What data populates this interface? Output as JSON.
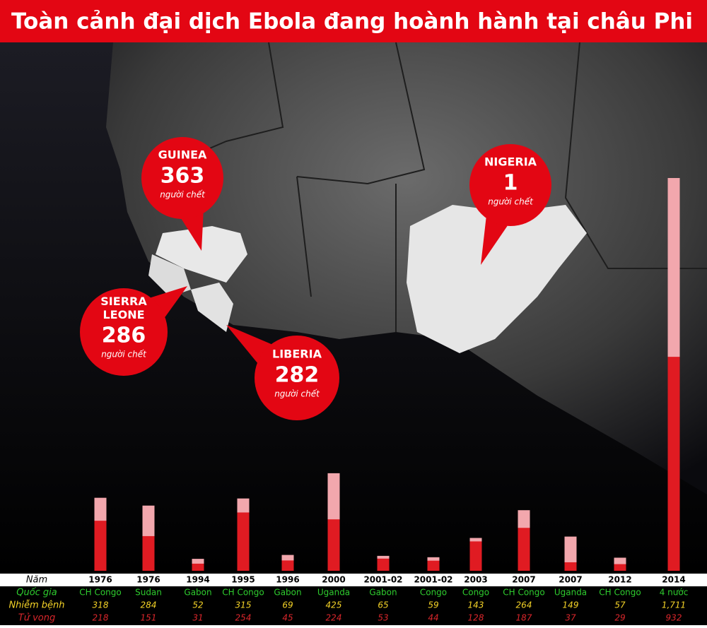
{
  "title": "Toàn cảnh đại dịch Ebola đang hoành hành tại châu Phi",
  "callouts": [
    {
      "name": "GUINEA",
      "value": "363",
      "unit": "người chết"
    },
    {
      "name": "SIERRA LEONE",
      "value": "286",
      "unit": "người chết"
    },
    {
      "name": "LIBERIA",
      "value": "282",
      "unit": "người chết"
    },
    {
      "name": "NIGERIA",
      "value": "1",
      "unit": "người chết"
    }
  ],
  "chart_data": {
    "type": "bar",
    "category_label": "Năm",
    "categories": [
      "1976",
      "1976",
      "1994",
      "1995",
      "1996",
      "2000",
      "2001-02",
      "2001-02",
      "2003",
      "2007",
      "2007",
      "2012",
      "2014"
    ],
    "countries": {
      "label": "Quốc gia",
      "values": [
        "CH Congo",
        "Sudan",
        "Gabon",
        "CH Congo",
        "Gabon",
        "Uganda",
        "Gabon",
        "Congo",
        "Congo",
        "CH Congo",
        "Uganda",
        "CH Congo",
        "4 nước"
      ]
    },
    "series": [
      {
        "name": "Nhiễm bệnh",
        "color": "#f2a7ad",
        "values": [
          318,
          284,
          52,
          315,
          69,
          425,
          65,
          59,
          143,
          264,
          149,
          57,
          1711
        ],
        "value_labels": [
          "318",
          "284",
          "52",
          "315",
          "69",
          "425",
          "65",
          "59",
          "143",
          "264",
          "149",
          "57",
          "1,711"
        ]
      },
      {
        "name": "Tử vong",
        "color": "#e01b22",
        "values": [
          218,
          151,
          31,
          254,
          45,
          224,
          53,
          44,
          128,
          187,
          37,
          29,
          932
        ]
      }
    ]
  }
}
